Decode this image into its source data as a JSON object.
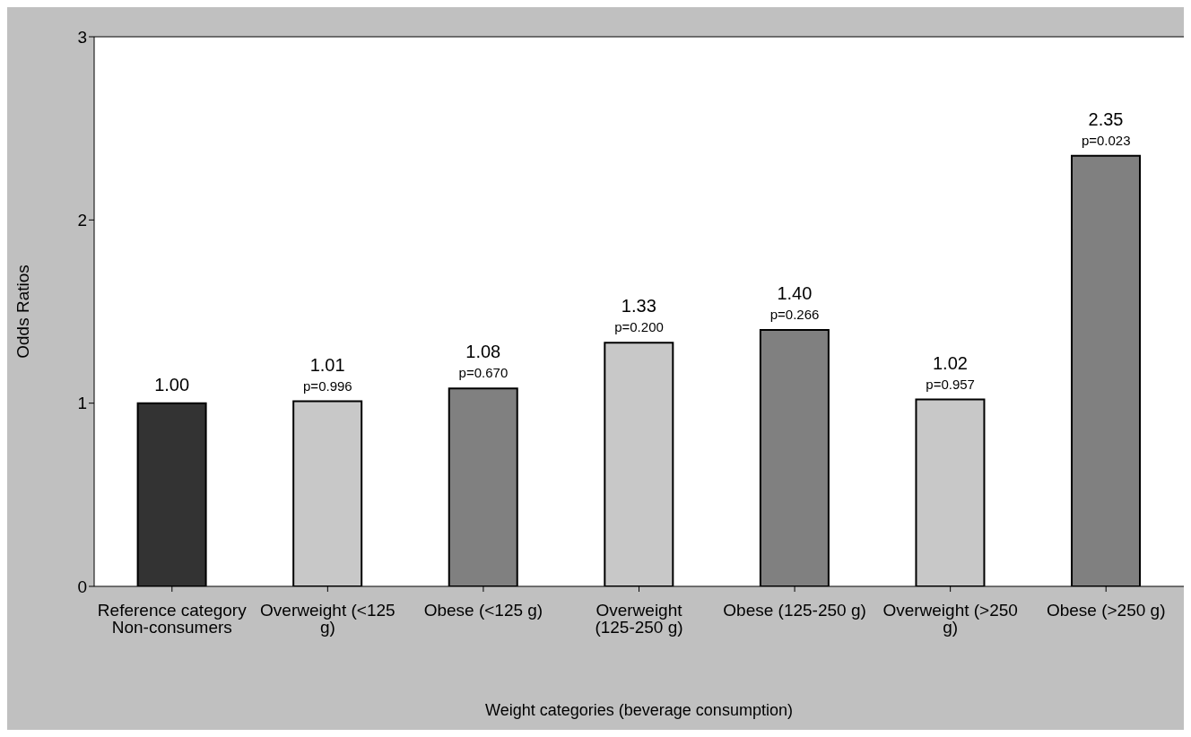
{
  "chart_data": {
    "type": "bar",
    "xlabel": "Weight categories (beverage consumption)",
    "ylabel": "Odds Ratios",
    "categories": [
      "Reference category Non-consumers",
      "Overweight (<125 g)",
      "Obese (<125 g)",
      "Overweight (125-250 g)",
      "Obese (125-250 g)",
      "Overweight (>250 g)",
      "Obese (>250 g)"
    ],
    "values": [
      1.0,
      1.01,
      1.08,
      1.33,
      1.4,
      1.02,
      2.35
    ],
    "colors": [
      "#333333",
      "#c8c8c8",
      "#808080",
      "#c8c8c8",
      "#808080",
      "#c8c8c8",
      "#808080"
    ],
    "value_labels": [
      "1.00",
      "1.01",
      "1.08",
      "1.33",
      "1.40",
      "1.02",
      "2.35"
    ],
    "ylim": [
      0,
      3
    ],
    "yticks": [
      0,
      1,
      2,
      3
    ],
    "legend": false,
    "annotations": [
      {
        "text": "p=0.996",
        "x": "Overweight (<125 g)",
        "y": 1.01
      },
      {
        "text": "p=0.670",
        "x": "Obese (<125 g)",
        "y": 1.08
      },
      {
        "text": "p=0.200",
        "x": "Overweight (125-250 g)",
        "y": 1.33
      },
      {
        "text": "p=0.266",
        "x": "Obese (125-250 g)",
        "y": 1.4
      },
      {
        "text": "p=0.957",
        "x": "Overweight (>250 g)",
        "y": 1.02
      },
      {
        "text": "p=0.023",
        "x": "Obese (>250 g)",
        "y": 2.35
      }
    ]
  }
}
